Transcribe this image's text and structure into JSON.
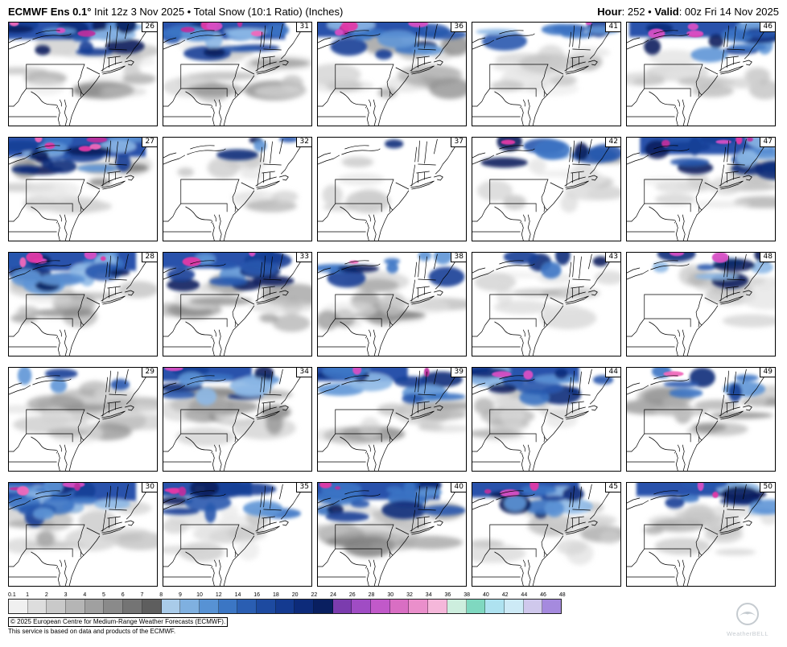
{
  "header": {
    "title_bold": "ECMWF Ens 0.1°",
    "title_rest": " Init 12z 3 Nov 2025 • Total Snow (10:1 Ratio) (Inches)",
    "hour_bold": "Hour",
    "hour_rest": ": 252 • ",
    "valid_bold": "Valid",
    "valid_rest": ": 00z Fri 14 Nov 2025"
  },
  "grid": {
    "rows": 5,
    "cols": 5,
    "members": [
      26,
      31,
      36,
      41,
      46,
      27,
      32,
      37,
      42,
      47,
      28,
      33,
      38,
      43,
      48,
      29,
      34,
      39,
      44,
      49,
      30,
      35,
      40,
      45,
      50
    ]
  },
  "colorbar": {
    "ticks": [
      "0.1",
      "1",
      "2",
      "3",
      "4",
      "5",
      "6",
      "7",
      "8",
      "9",
      "10",
      "12",
      "14",
      "16",
      "18",
      "20",
      "22",
      "24",
      "26",
      "28",
      "30",
      "32",
      "34",
      "36",
      "38",
      "40",
      "42",
      "44",
      "46",
      "48"
    ],
    "colors": [
      "#f0f0f0",
      "#dddddd",
      "#c9c9c9",
      "#b5b5b5",
      "#a0a0a0",
      "#8a8a8a",
      "#747474",
      "#5e5e5e",
      "#a9cbe9",
      "#7fb0e0",
      "#5792d4",
      "#3b76c4",
      "#2a5eb2",
      "#1d4aa0",
      "#143a90",
      "#0d2b7a",
      "#091f60",
      "#7b3cae",
      "#a04cc4",
      "#c159c9",
      "#d96ec3",
      "#ea8fcb",
      "#f5b7da",
      "#cdeede",
      "#7fd8c0",
      "#aee2f0",
      "#cdeaf6",
      "#cfc8ec",
      "#a58ade"
    ]
  },
  "footer": {
    "line1": "© 2025 European Centre for Medium-Range Weather Forecasts (ECMWF).",
    "line2": "This service is based on data and products of the ECMWF."
  },
  "watermark": {
    "text": "WeatherBELL"
  }
}
